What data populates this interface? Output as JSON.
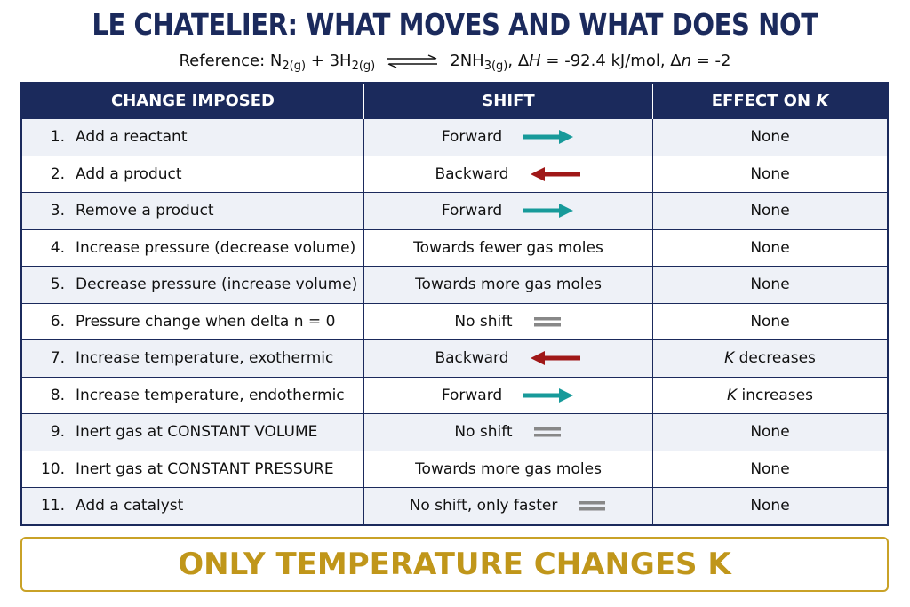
{
  "header": {
    "title": "LE CHATELIER: WHAT MOVES AND WHAT DOES NOT",
    "reference": [
      "Reference: N",
      "2(g)",
      " + 3H",
      "2(g)",
      "2NH",
      "3(g)",
      ", Δ",
      "H",
      " = -92.4 kJ/mol, Δ",
      "n",
      " = -2"
    ]
  },
  "table": {
    "columns": [
      "CHANGE IMPOSED",
      "SHIFT",
      {
        "text": "EFFECT ON ",
        "symbol": "K"
      }
    ],
    "rows": [
      {
        "number": "1.",
        "change": "Add a reactant",
        "shift": "Forward",
        "effect": "None"
      },
      {
        "number": "2.",
        "change": "Add a product",
        "shift": "Backward",
        "effect": "None"
      },
      {
        "number": "3.",
        "change": "Remove a product",
        "shift": "Forward",
        "effect": "None"
      },
      {
        "number": "4.",
        "change": "Increase pressure (decrease volume)",
        "shift": "Towards fewer gas moles",
        "effect": "None"
      },
      {
        "number": "5.",
        "change": "Decrease pressure (increase volume)",
        "shift": "Towards more gas moles",
        "effect": "None"
      },
      {
        "number": "6.",
        "change": "Pressure change when delta n = 0",
        "shift": "No shift",
        "effect": "None"
      },
      {
        "number": "7.",
        "change": "Increase temperature, exothermic",
        "shift": "Backward",
        "effect": {
          "symbol": "K",
          "text": " decreases"
        }
      },
      {
        "number": "8.",
        "change": "Increase temperature, endothermic",
        "shift": "Forward",
        "effect": {
          "symbol": "K",
          "text": " increases"
        }
      },
      {
        "number": "9.",
        "change": "Inert gas at CONSTANT VOLUME",
        "shift": "No shift",
        "effect": "None"
      },
      {
        "number": "10.",
        "change": "Inert gas at CONSTANT PRESSURE",
        "shift": "Towards more gas moles",
        "effect": "None"
      },
      {
        "number": "11.",
        "change": "Add a catalyst",
        "shift": "No shift, only faster",
        "effect": "None"
      }
    ]
  },
  "footer": {
    "text": "ONLY TEMPERATURE CHANGES K"
  }
}
